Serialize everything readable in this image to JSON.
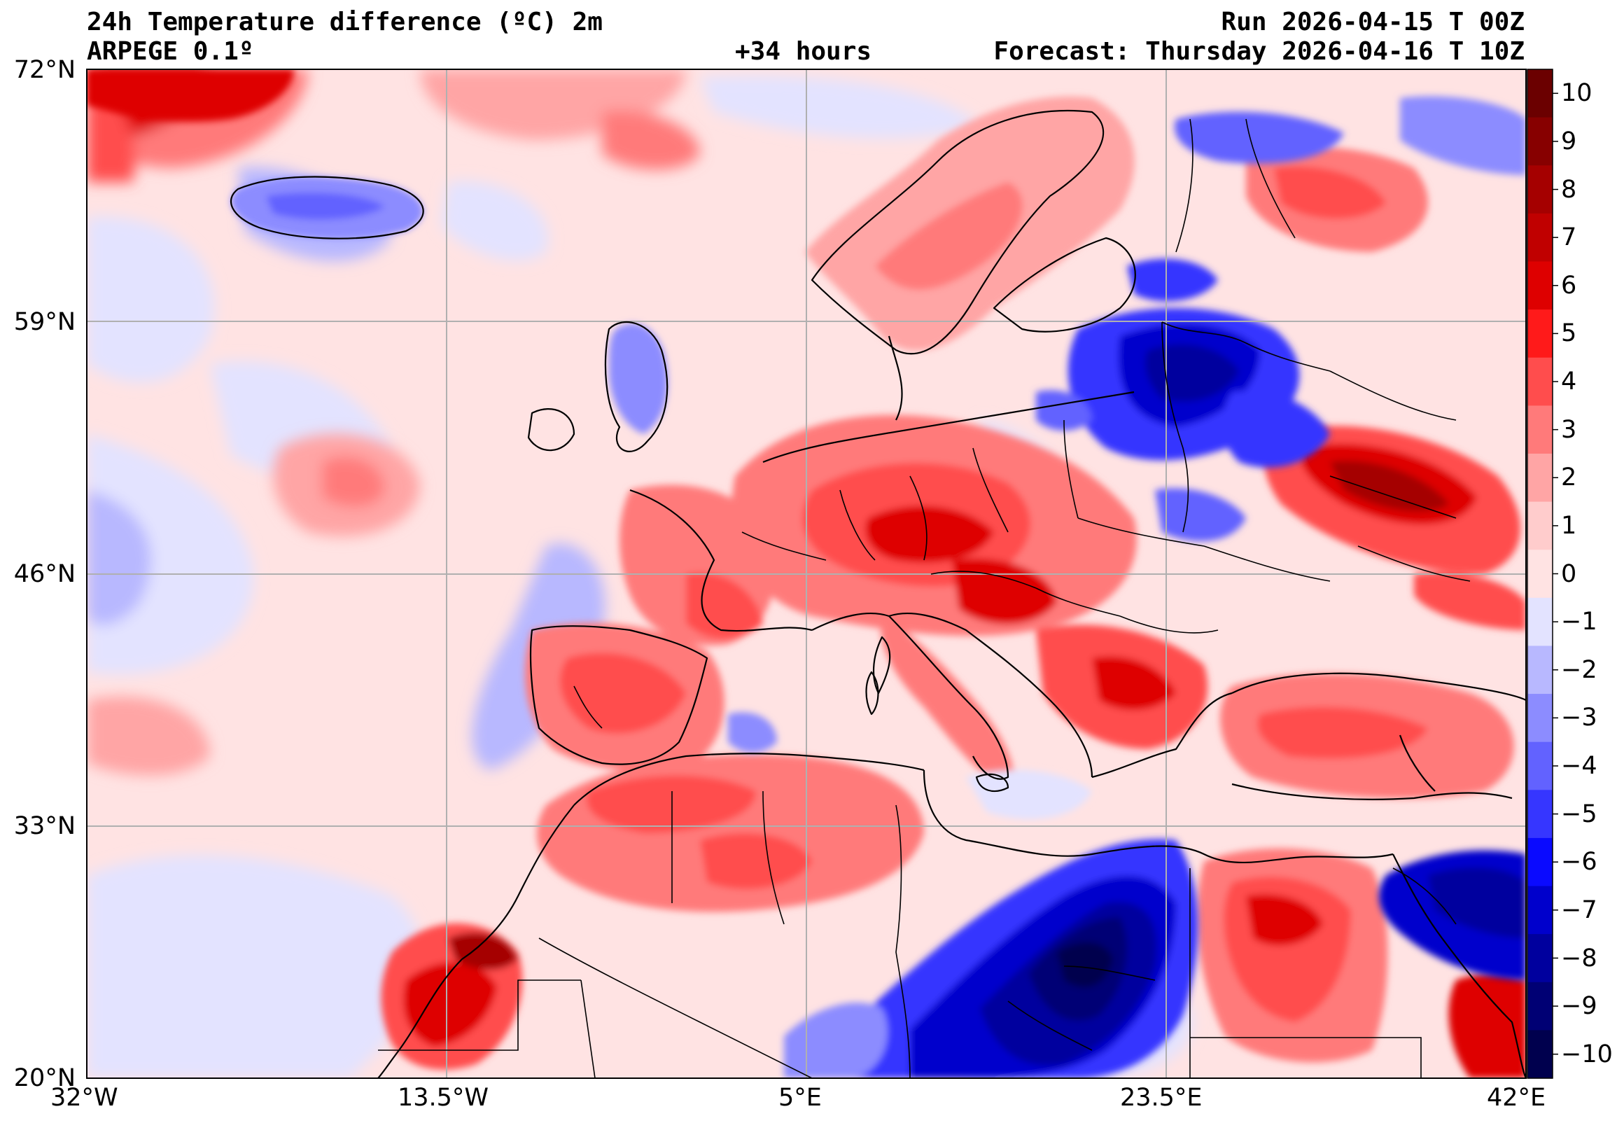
{
  "header": {
    "title": "24h Temperature difference (ºC) 2m",
    "model": "ARPEGE 0.1º",
    "lead_time": "+34 hours",
    "run": "Run 2026-04-15 T 00Z",
    "forecast": "Forecast: Thursday 2026-04-16 T 10Z"
  },
  "axes": {
    "latitude_labels": [
      "72°N",
      "59°N",
      "46°N",
      "33°N",
      "20°N"
    ],
    "longitude_labels": [
      "32°W",
      "13.5°W",
      "5°E",
      "23.5°E",
      "42°E"
    ],
    "lat_range": [
      20,
      72
    ],
    "lon_range": [
      -32,
      42
    ],
    "grid": true
  },
  "colorbar": {
    "labels": [
      "10",
      "9",
      "8",
      "7",
      "6",
      "5",
      "4",
      "3",
      "2",
      "1",
      "0",
      "−1",
      "−2",
      "−3",
      "−4",
      "−5",
      "−6",
      "−7",
      "−8",
      "−9",
      "−10"
    ],
    "colors": [
      "#6b0000",
      "#870000",
      "#a50000",
      "#c00000",
      "#de0000",
      "#ff1a1a",
      "#ff4d4d",
      "#ff7a7a",
      "#ffa5a5",
      "#ffcccc",
      "#ffe3e3",
      "#e3e3ff",
      "#b8b8ff",
      "#8c8cff",
      "#6262ff",
      "#3636ff",
      "#0a0aff",
      "#0000cc",
      "#00009e",
      "#000074",
      "#00004e"
    ]
  },
  "regions": {
    "ocean_background": "0 to 1 (slight warming)",
    "scandinavia": "warming 2 to 5",
    "central_europe": "warming 3 to 7",
    "iberia": "warming 3 to 6",
    "north_africa_atlas": "warming 4 to 8",
    "baltic_belarus": "cooling −5 to −9",
    "libya_desert": "cooling −6 to −10",
    "ukraine_russia": "warming 6 to 9",
    "egypt": "warming 4 to 7"
  }
}
